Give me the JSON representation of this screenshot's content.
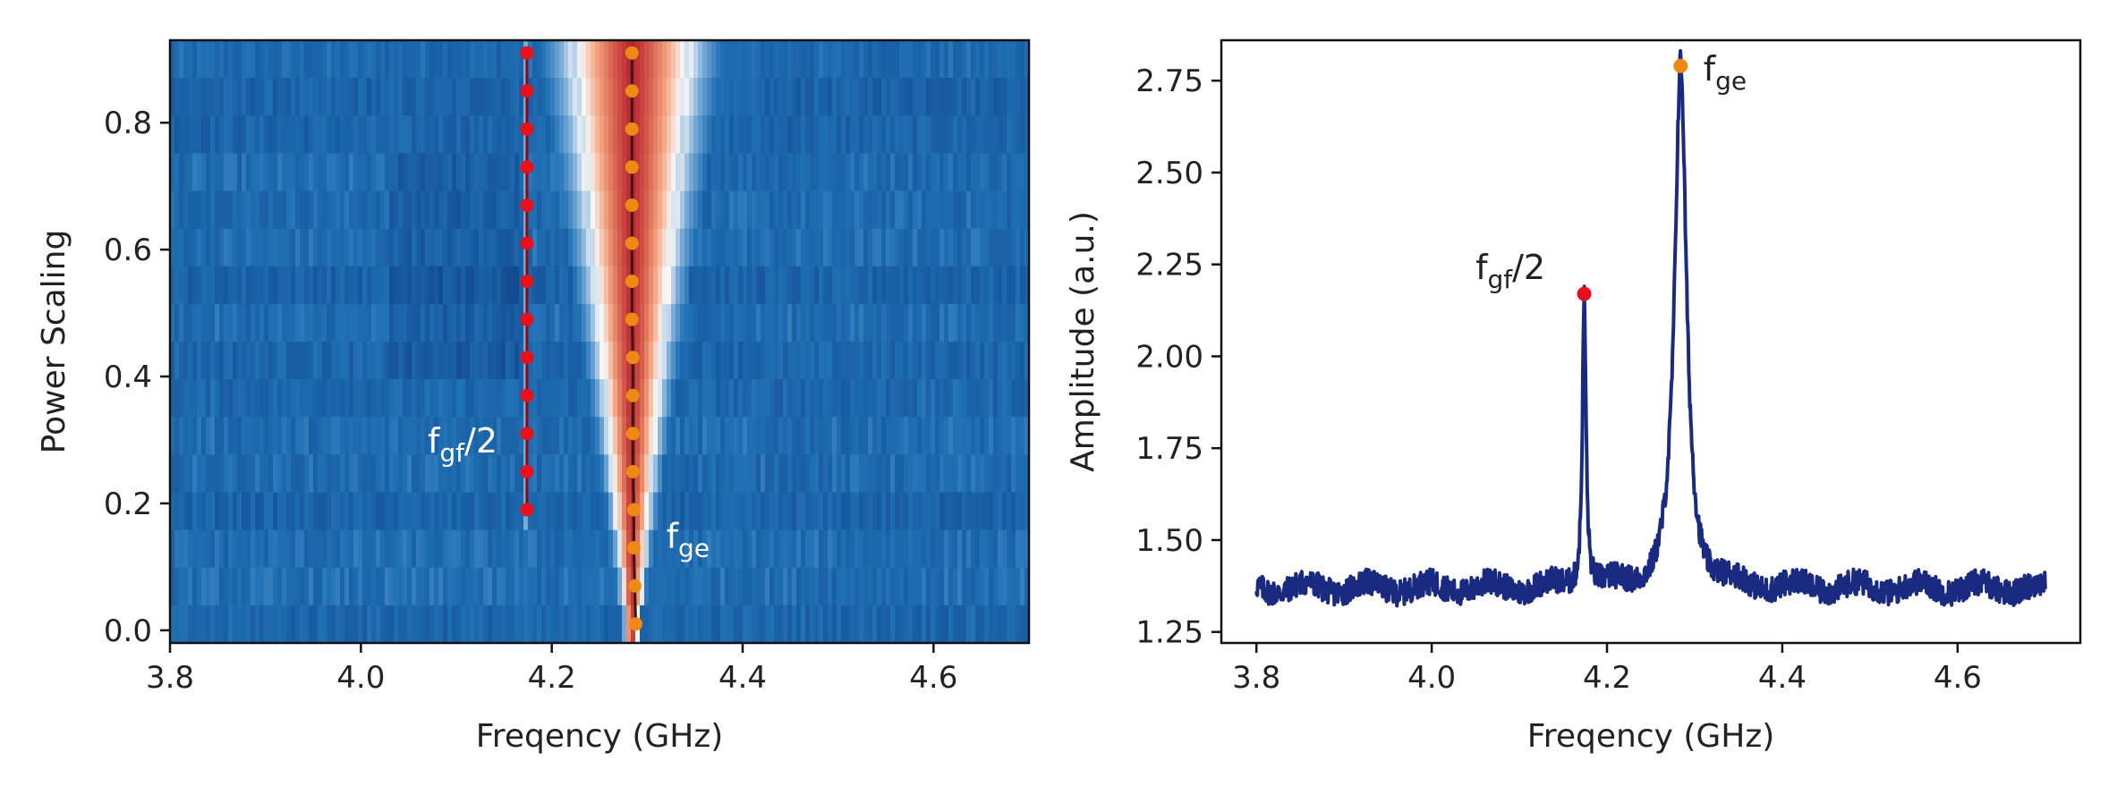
{
  "chart_data": [
    {
      "type": "heatmap",
      "xlabel": "Freqency (GHz)",
      "ylabel": "Power Scaling",
      "xlim": [
        3.8,
        4.7
      ],
      "ylim": [
        -0.02,
        0.93
      ],
      "x_ticks": [
        3.8,
        4.0,
        4.2,
        4.4,
        4.6
      ],
      "x_tick_labels": [
        "3.8",
        "4.0",
        "4.2",
        "4.4",
        "4.6"
      ],
      "y_ticks": [
        0.0,
        0.2,
        0.4,
        0.6,
        0.8
      ],
      "y_tick_labels": [
        "0.0",
        "0.2",
        "0.4",
        "0.6",
        "0.8"
      ],
      "colormap": "RdBu_r",
      "rows": 16,
      "series": [
        {
          "marker_color": "#e8101a",
          "line_color": "#8b0a14",
          "x": [
            4.174,
            4.174,
            4.174,
            4.174,
            4.174,
            4.174,
            4.174,
            4.174,
            4.174,
            4.174,
            4.174,
            4.174,
            4.174
          ],
          "y": [
            0.19,
            0.25,
            0.31,
            0.37,
            0.43,
            0.49,
            0.55,
            0.61,
            0.67,
            0.73,
            0.79,
            0.85,
            0.91
          ]
        },
        {
          "marker_color": "#ee8a14",
          "line_color": "#3a1a10",
          "x": [
            4.288,
            4.287,
            4.286,
            4.286,
            4.285,
            4.285,
            4.285,
            4.285,
            4.284,
            4.284,
            4.284,
            4.284,
            4.284,
            4.284,
            4.284,
            4.284
          ],
          "y": [
            0.01,
            0.07,
            0.13,
            0.19,
            0.25,
            0.31,
            0.37,
            0.43,
            0.49,
            0.55,
            0.61,
            0.67,
            0.73,
            0.79,
            0.85,
            0.91
          ]
        }
      ],
      "annotations": [
        {
          "text": "f",
          "sub": "gf",
          "suffix": "/2",
          "x": 4.07,
          "y": 0.28,
          "color": "#ffffff"
        },
        {
          "text": "f",
          "sub": "ge",
          "suffix": "",
          "x": 4.32,
          "y": 0.13,
          "color": "#ffffff"
        }
      ]
    },
    {
      "type": "line",
      "xlabel": "Freqency (GHz)",
      "ylabel": "Amplitude (a.u.)",
      "xlim": [
        3.76,
        4.74
      ],
      "ylim": [
        1.22,
        2.86
      ],
      "x_ticks": [
        3.8,
        4.0,
        4.2,
        4.4,
        4.6
      ],
      "x_tick_labels": [
        "3.8",
        "4.0",
        "4.2",
        "4.4",
        "4.6"
      ],
      "y_ticks": [
        1.25,
        1.5,
        1.75,
        2.0,
        2.25,
        2.5,
        2.75
      ],
      "y_tick_labels": [
        "1.25",
        "1.50",
        "1.75",
        "2.00",
        "2.25",
        "2.50",
        "2.75"
      ],
      "line_color": "#1a2a80",
      "x_range": [
        3.8,
        4.7
      ],
      "baseline": 1.37,
      "peaks": [
        {
          "center": 4.174,
          "amplitude": 0.8,
          "width": 0.0025
        },
        {
          "center": 4.284,
          "amplitude": 1.42,
          "width": 0.008
        }
      ],
      "markers": [
        {
          "x": 4.174,
          "y": 2.17,
          "color": "#e8101a"
        },
        {
          "x": 4.284,
          "y": 2.79,
          "color": "#ee8a14"
        }
      ],
      "annotations": [
        {
          "text": "f",
          "sub": "gf",
          "suffix": "/2",
          "x": 4.05,
          "y": 2.21,
          "color": "#222222"
        },
        {
          "text": "f",
          "sub": "ge",
          "suffix": "",
          "x": 4.31,
          "y": 2.75,
          "color": "#222222"
        }
      ]
    }
  ]
}
